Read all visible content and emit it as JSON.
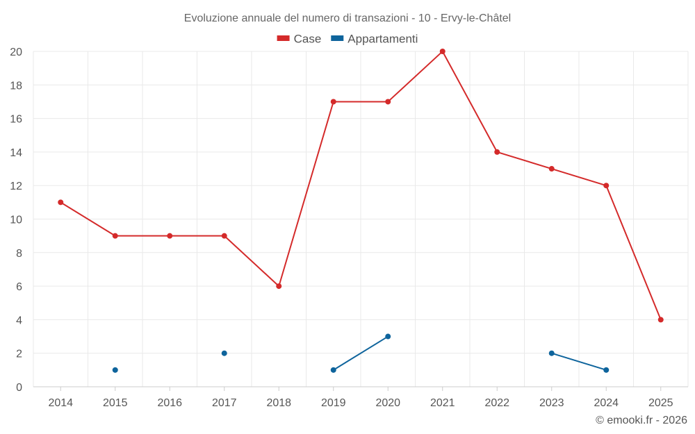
{
  "chart_data": {
    "type": "line",
    "title": "Evoluzione annuale del numero di transazioni - 10 - Ervy-le-Châtel",
    "categories": [
      "2014",
      "2015",
      "2016",
      "2017",
      "2018",
      "2019",
      "2020",
      "2021",
      "2022",
      "2023",
      "2024",
      "2025"
    ],
    "series": [
      {
        "name": "Case",
        "color": "#d42a2a",
        "values": [
          11,
          9,
          9,
          9,
          6,
          17,
          17,
          20,
          14,
          13,
          12,
          4
        ]
      },
      {
        "name": "Appartamenti",
        "color": "#0e649c",
        "values": [
          null,
          1,
          null,
          2,
          null,
          1,
          3,
          null,
          null,
          2,
          1,
          null
        ]
      }
    ],
    "ylim": [
      0,
      20
    ],
    "yticks": [
      0,
      2,
      4,
      6,
      8,
      10,
      12,
      14,
      16,
      18,
      20
    ],
    "grid": true,
    "legend": "top-center"
  },
  "credit": "© emooki.fr - 2026"
}
